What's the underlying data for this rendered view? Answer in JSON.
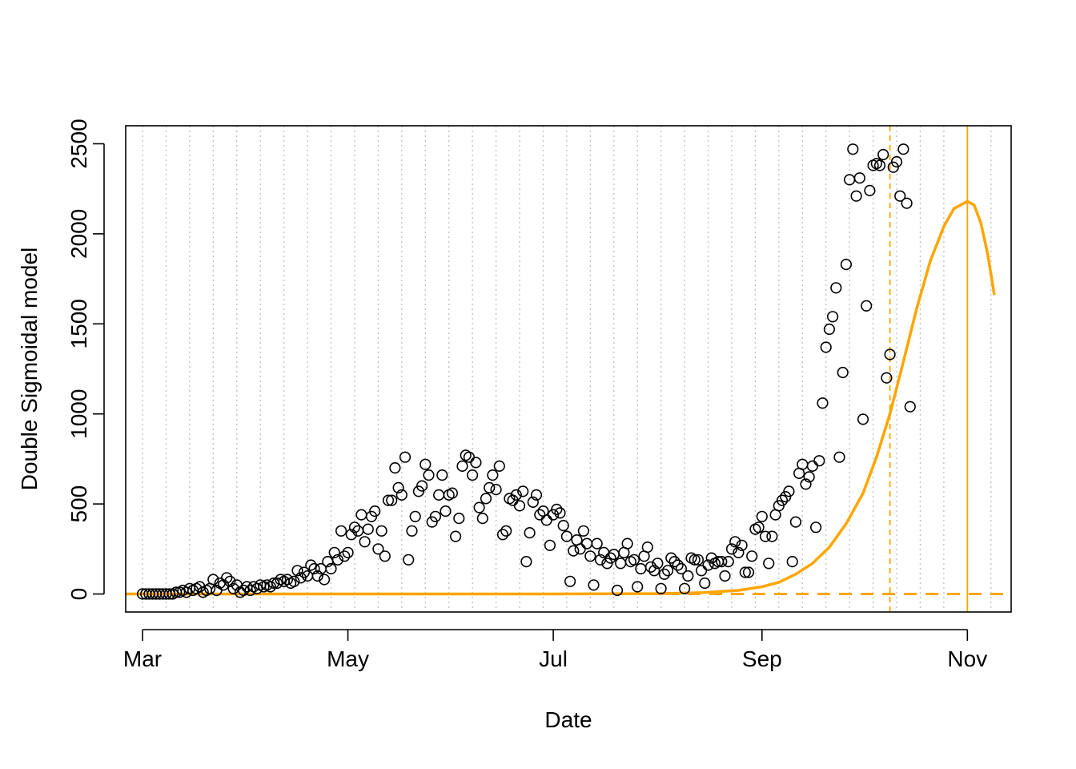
{
  "chart_data": {
    "type": "scatter",
    "title": "",
    "xlabel": "Date",
    "ylabel": "Double Sigmoidal model",
    "x_is_date": true,
    "year": 2020,
    "xlim": [
      "2020-02-25",
      "2020-11-14"
    ],
    "ylim": [
      -100,
      2600
    ],
    "x_ticks": [
      {
        "date": "2020-03-01",
        "label": "Mar"
      },
      {
        "date": "2020-05-01",
        "label": "May"
      },
      {
        "date": "2020-07-01",
        "label": "Jul"
      },
      {
        "date": "2020-09-01",
        "label": "Sep"
      },
      {
        "date": "2020-11-01",
        "label": "Nov"
      }
    ],
    "y_ticks": [
      0,
      500,
      1000,
      1500,
      2000,
      2500
    ],
    "weekly_gridlines": {
      "start": "2020-03-01",
      "end": "2020-11-08",
      "step_days": 7,
      "color": "#bebebe",
      "style": "dotted"
    },
    "colors": {
      "points": "#000000",
      "model": "#ffa500"
    },
    "reference_lines": {
      "horizontal_dashed_y": 0,
      "vertical_dashed_date": "2020-10-09",
      "vertical_solid_date": "2020-11-01"
    },
    "series": [
      {
        "kind": "points",
        "style": "open-circle",
        "start_date": "2020-03-01",
        "y": [
          0,
          0,
          0,
          0,
          0,
          0,
          0,
          0,
          0,
          0,
          10,
          10,
          20,
          10,
          30,
          20,
          30,
          40,
          10,
          20,
          30,
          80,
          20,
          60,
          50,
          90,
          70,
          30,
          50,
          10,
          20,
          40,
          20,
          40,
          30,
          50,
          40,
          50,
          40,
          60,
          60,
          80,
          70,
          80,
          60,
          70,
          130,
          90,
          120,
          100,
          160,
          140,
          100,
          140,
          80,
          180,
          140,
          230,
          190,
          350,
          210,
          230,
          330,
          370,
          350,
          440,
          290,
          360,
          430,
          460,
          250,
          350,
          210,
          520,
          520,
          700,
          590,
          550,
          760,
          190,
          350,
          430,
          570,
          600,
          720,
          660,
          400,
          430,
          550,
          660,
          460,
          550,
          560,
          320,
          420,
          710,
          770,
          760,
          660,
          730,
          480,
          420,
          530,
          590,
          660,
          580,
          710,
          330,
          350,
          530,
          520,
          550,
          490,
          570,
          180,
          340,
          510,
          550,
          440,
          460,
          410,
          270,
          440,
          470,
          450,
          380,
          320,
          70,
          240,
          300,
          250,
          350,
          280,
          210,
          50,
          280,
          190,
          230,
          170,
          200,
          220,
          20,
          170,
          230,
          280,
          180,
          190,
          40,
          140,
          210,
          260,
          150,
          130,
          170,
          30,
          110,
          130,
          200,
          180,
          160,
          140,
          30,
          100,
          200,
          190,
          190,
          130,
          60,
          160,
          200,
          170,
          180,
          180,
          100,
          180,
          250,
          290,
          230,
          270,
          120,
          120,
          210,
          360,
          370,
          430,
          320,
          170,
          320,
          440,
          490,
          520,
          540,
          570,
          180,
          400,
          670,
          720,
          610,
          650,
          710,
          370,
          740,
          1060,
          1370,
          1470,
          1540,
          1700,
          760,
          1230,
          1830,
          2300,
          2470,
          2210,
          2310,
          970,
          1600,
          2240,
          2380,
          2390,
          2380,
          2440,
          1200,
          1330,
          2370,
          2400,
          2210,
          2470,
          2170,
          1040
        ]
      },
      {
        "kind": "line",
        "name": "",
        "points": [
          {
            "date": "2020-02-25",
            "y": 0
          },
          {
            "date": "2020-07-01",
            "y": 0
          },
          {
            "date": "2020-08-01",
            "y": 2
          },
          {
            "date": "2020-08-15",
            "y": 8
          },
          {
            "date": "2020-08-25",
            "y": 20
          },
          {
            "date": "2020-09-01",
            "y": 40
          },
          {
            "date": "2020-09-06",
            "y": 65
          },
          {
            "date": "2020-09-11",
            "y": 110
          },
          {
            "date": "2020-09-16",
            "y": 170
          },
          {
            "date": "2020-09-21",
            "y": 260
          },
          {
            "date": "2020-09-26",
            "y": 390
          },
          {
            "date": "2020-10-01",
            "y": 560
          },
          {
            "date": "2020-10-05",
            "y": 760
          },
          {
            "date": "2020-10-09",
            "y": 1000
          },
          {
            "date": "2020-10-13",
            "y": 1290
          },
          {
            "date": "2020-10-17",
            "y": 1590
          },
          {
            "date": "2020-10-21",
            "y": 1850
          },
          {
            "date": "2020-10-25",
            "y": 2040
          },
          {
            "date": "2020-10-28",
            "y": 2140
          },
          {
            "date": "2020-11-01",
            "y": 2180
          },
          {
            "date": "2020-11-03",
            "y": 2160
          },
          {
            "date": "2020-11-05",
            "y": 2060
          },
          {
            "date": "2020-11-07",
            "y": 1890
          },
          {
            "date": "2020-11-09",
            "y": 1660
          }
        ]
      }
    ]
  }
}
